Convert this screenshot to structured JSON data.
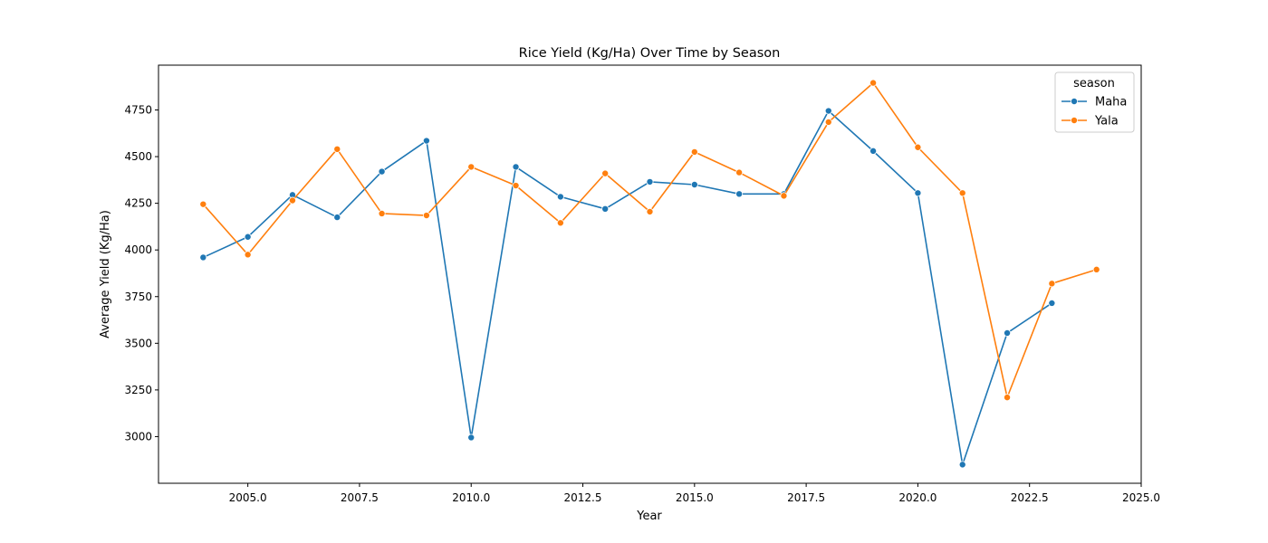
{
  "chart_data": {
    "type": "line",
    "title": "Rice Yield (Kg/Ha) Over Time by Season",
    "xlabel": "Year",
    "ylabel": "Average Yield (Kg/Ha)",
    "xlim": [
      2003.0,
      2025.0
    ],
    "ylim": [
      2750,
      4990
    ],
    "xticks": [
      2005.0,
      2007.5,
      2010.0,
      2012.5,
      2015.0,
      2017.5,
      2020.0,
      2022.5,
      2025.0
    ],
    "xtick_labels": [
      "2005.0",
      "2007.5",
      "2010.0",
      "2012.5",
      "2015.0",
      "2017.5",
      "2020.0",
      "2022.5",
      "2025.0"
    ],
    "yticks": [
      3000,
      3250,
      3500,
      3750,
      4000,
      4250,
      4500,
      4750
    ],
    "ytick_labels": [
      "3000",
      "3250",
      "3500",
      "3750",
      "4000",
      "4250",
      "4500",
      "4750"
    ],
    "grid": false,
    "legend": {
      "title": "season",
      "placement": "top-right"
    },
    "series": [
      {
        "name": "Maha",
        "color": "#1f77b4",
        "points": [
          [
            2004,
            3960
          ],
          [
            2005,
            4070
          ],
          [
            2006,
            4295
          ],
          [
            2007,
            4175
          ],
          [
            2008,
            4420
          ],
          [
            2009,
            4585
          ],
          [
            2010,
            2995
          ],
          [
            2011,
            4445
          ],
          [
            2012,
            4285
          ],
          [
            2013,
            4220
          ],
          [
            2014,
            4365
          ],
          [
            2015,
            4350
          ],
          [
            2016,
            4300
          ],
          [
            2017,
            4300
          ],
          [
            2018,
            4745
          ],
          [
            2019,
            4530
          ],
          [
            2020,
            4305
          ],
          [
            2021,
            2850
          ],
          [
            2022,
            3555
          ],
          [
            2023,
            3715
          ]
        ]
      },
      {
        "name": "Yala",
        "color": "#ff7f0e",
        "points": [
          [
            2004,
            4245
          ],
          [
            2005,
            3975
          ],
          [
            2006,
            4265
          ],
          [
            2007,
            4540
          ],
          [
            2008,
            4195
          ],
          [
            2009,
            4185
          ],
          [
            2010,
            4445
          ],
          [
            2011,
            4345
          ],
          [
            2012,
            4145
          ],
          [
            2013,
            4410
          ],
          [
            2014,
            4205
          ],
          [
            2015,
            4525
          ],
          [
            2016,
            4415
          ],
          [
            2017,
            4290
          ],
          [
            2018,
            4685
          ],
          [
            2019,
            4895
          ],
          [
            2020,
            4550
          ],
          [
            2021,
            4305
          ],
          [
            2022,
            3210
          ],
          [
            2023,
            3820
          ],
          [
            2024,
            3895
          ]
        ]
      }
    ]
  }
}
